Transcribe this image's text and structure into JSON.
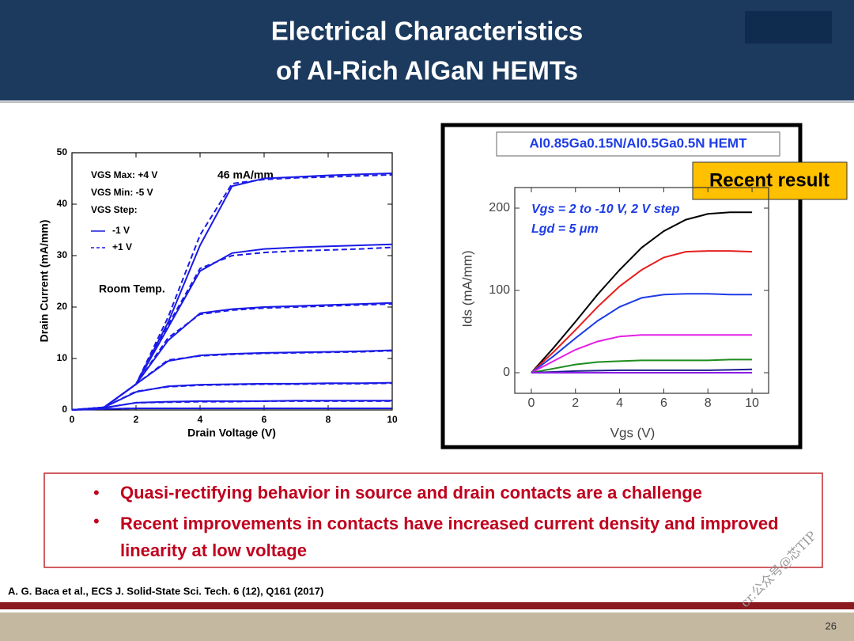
{
  "header": {
    "title_lines": [
      "Electrical Characteristics",
      "of Al-Rich AlGaN HEMTs"
    ]
  },
  "chart_data": [
    {
      "type": "line",
      "xlabel": "Drain Voltage (V)",
      "ylabel": "Drain Current (mA/mm)",
      "xlim": [
        0,
        10
      ],
      "ylim": [
        0,
        50
      ],
      "xticks": [
        0,
        2,
        4,
        6,
        8,
        10
      ],
      "yticks": [
        0,
        10,
        20,
        30,
        40,
        50
      ],
      "legend_lines": [
        "VGS Max: +4 V",
        "VGS Min:  -5 V",
        "VGS Step:"
      ],
      "annotations": [
        "46 mA/mm",
        "Room Temp."
      ],
      "x": [
        0,
        1,
        2,
        3,
        4,
        5,
        6,
        7,
        8,
        9,
        10
      ],
      "series": [
        {
          "name": "-1 V",
          "color": "#1a1ae6",
          "dash": false,
          "curves": [
            [
              0,
              0.5,
              5,
              17,
              32,
              43.5,
              45,
              45.3,
              45.6,
              45.8,
              46
            ],
            [
              0,
              0.5,
              5,
              16,
              27,
              30.5,
              31.3,
              31.6,
              31.8,
              32,
              32.2
            ],
            [
              0,
              0.5,
              5,
              13.5,
              18.8,
              19.6,
              20,
              20.2,
              20.4,
              20.6,
              20.8
            ],
            [
              0,
              0.5,
              5,
              9.5,
              10.6,
              10.9,
              11.1,
              11.2,
              11.3,
              11.4,
              11.6
            ],
            [
              0,
              0.5,
              3.5,
              4.6,
              4.9,
              5,
              5.1,
              5.1,
              5.2,
              5.2,
              5.3
            ],
            [
              0,
              0.4,
              1.4,
              1.6,
              1.7,
              1.7,
              1.7,
              1.8,
              1.8,
              1.8,
              1.8
            ],
            [
              0,
              0.2,
              0.3,
              0.3,
              0.3,
              0.3,
              0.3,
              0.3,
              0.3,
              0.3,
              0.3
            ]
          ]
        },
        {
          "name": "+1 V",
          "color": "#1a1ae6",
          "dash": true,
          "curves": [
            [
              0,
              0.5,
              5,
              18,
              34,
              44,
              44.8,
              45.1,
              45.3,
              45.5,
              45.7
            ],
            [
              0,
              0.5,
              5,
              16.5,
              27.5,
              30,
              30.6,
              30.9,
              31.1,
              31.3,
              31.6
            ],
            [
              0,
              0.5,
              5,
              14,
              18.6,
              19.4,
              19.8,
              20,
              20.2,
              20.4,
              20.6
            ],
            [
              0,
              0.5,
              5,
              9.7,
              10.5,
              10.8,
              11,
              11.1,
              11.2,
              11.3,
              11.5
            ],
            [
              0,
              0.5,
              3.6,
              4.5,
              4.8,
              4.9,
              5,
              5,
              5.1,
              5.1,
              5.2
            ],
            [
              0,
              0.4,
              1.4,
              1.5,
              1.6,
              1.6,
              1.7,
              1.7,
              1.7,
              1.7,
              1.7
            ],
            [
              0,
              0.2,
              0.3,
              0.3,
              0.3,
              0.3,
              0.3,
              0.3,
              0.3,
              0.3,
              0.3
            ]
          ]
        }
      ]
    },
    {
      "type": "line",
      "title": "Al0.85Ga0.15N/Al0.5Ga0.5N HEMT",
      "xlabel": "Vgs (V)",
      "ylabel": "Ids (mA/mm)",
      "xlim": [
        -0.75,
        10.75
      ],
      "ylim": [
        -25,
        225
      ],
      "xticks": [
        0,
        2,
        4,
        6,
        8,
        10
      ],
      "yticks": [
        0,
        100,
        200
      ],
      "annotations": [
        "Vgs = 2 to -10 V, 2 V step",
        "Lgd = 5 μm"
      ],
      "x": [
        0,
        1,
        2,
        3,
        4,
        5,
        6,
        7,
        8,
        9,
        10
      ],
      "series": [
        {
          "color": "#000000",
          "values": [
            0,
            30,
            62,
            95,
            125,
            152,
            172,
            186,
            193,
            195,
            195
          ]
        },
        {
          "color": "#e61e1e",
          "values": [
            0,
            25,
            52,
            80,
            105,
            125,
            140,
            147,
            148,
            148,
            147
          ]
        },
        {
          "color": "#1e3ce6",
          "values": [
            0,
            20,
            42,
            63,
            80,
            91,
            95,
            96,
            96,
            95,
            95
          ]
        },
        {
          "color": "#e61ee6",
          "values": [
            0,
            14,
            28,
            38,
            44,
            46,
            46,
            46,
            46,
            46,
            46
          ]
        },
        {
          "color": "#1e8c1e",
          "values": [
            0,
            5,
            10,
            13,
            14,
            15,
            15,
            15,
            15,
            16,
            16
          ]
        },
        {
          "color": "#1e1e8c",
          "values": [
            0,
            1,
            2,
            2.5,
            3,
            3,
            3,
            3,
            3,
            3.5,
            4
          ]
        },
        {
          "color": "#8c1ee6",
          "values": [
            0,
            0,
            0,
            0,
            0,
            0,
            0,
            0,
            0,
            0,
            0
          ]
        }
      ]
    }
  ],
  "callout": "Recent result",
  "bullets": [
    "Quasi-rectifying behavior in source and drain contacts are a challenge",
    "Recent improvements in contacts have increased current density and improved linearity at low voltage"
  ],
  "citation": "A. G. Baca et al., ECS J. Solid-State Sci. Tech. 6 (12), Q161 (2017)",
  "page_number": "26",
  "watermark": "cr.公众号@芯TIP"
}
